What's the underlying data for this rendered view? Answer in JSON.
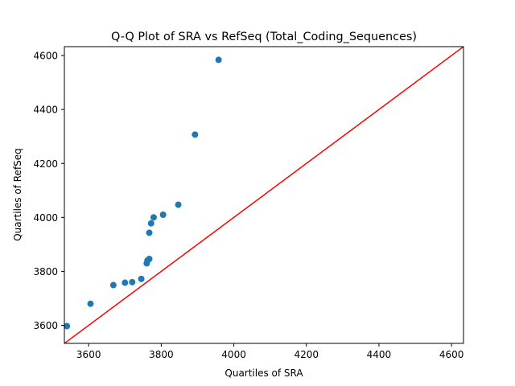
{
  "chart_data": {
    "type": "scatter",
    "title": "Q-Q Plot of SRA vs RefSeq (Total_Coding_Sequences)",
    "xlabel": "Quartiles of SRA",
    "ylabel": "Quartiles of RefSeq",
    "xlim": [
      3533,
      4633
    ],
    "ylim": [
      3533,
      4633
    ],
    "xticks": [
      3600,
      3800,
      4000,
      4200,
      4400,
      4600
    ],
    "yticks": [
      3600,
      3800,
      4000,
      4200,
      4400,
      4600
    ],
    "grid": false,
    "series": [
      {
        "color": "#1f77b4",
        "points": [
          {
            "x": 3540,
            "y": 3597
          },
          {
            "x": 3605,
            "y": 3680
          },
          {
            "x": 3668,
            "y": 3749
          },
          {
            "x": 3700,
            "y": 3758
          },
          {
            "x": 3720,
            "y": 3760
          },
          {
            "x": 3745,
            "y": 3772
          },
          {
            "x": 3760,
            "y": 3830
          },
          {
            "x": 3762,
            "y": 3840
          },
          {
            "x": 3767,
            "y": 3846
          },
          {
            "x": 3767,
            "y": 3943
          },
          {
            "x": 3772,
            "y": 3978
          },
          {
            "x": 3779,
            "y": 4000
          },
          {
            "x": 3805,
            "y": 4010
          },
          {
            "x": 3847,
            "y": 4047
          },
          {
            "x": 3893,
            "y": 4307
          },
          {
            "x": 3958,
            "y": 4584
          }
        ]
      }
    ],
    "reference_line": {
      "from": 3533,
      "to": 4633,
      "color": "#ff0000"
    }
  }
}
